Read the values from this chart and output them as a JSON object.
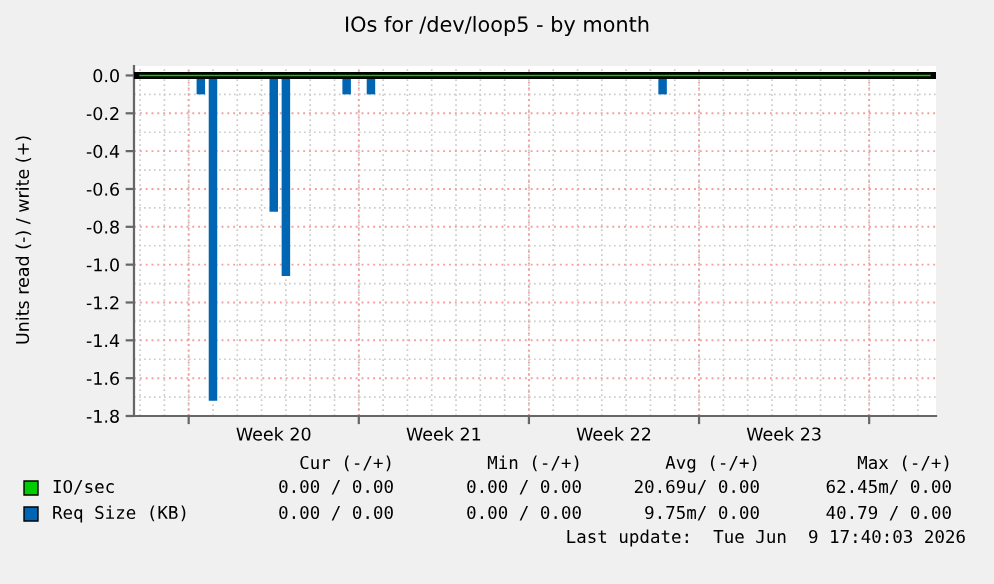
{
  "chart_data": {
    "type": "bar",
    "title": "IOs for /dev/loop5 - by month",
    "ylabel": "Units read (-) / write (+)",
    "categories": [
      null,
      null,
      null,
      null,
      null,
      null,
      null,
      null,
      null,
      null,
      null,
      "Week 20",
      null,
      null,
      null,
      null,
      null,
      null,
      null,
      null,
      null,
      null,
      null,
      null,
      null,
      "Week 21",
      null,
      null,
      null,
      null,
      null,
      null,
      null,
      null,
      null,
      null,
      null,
      null,
      null,
      "Week 22",
      null,
      null,
      null,
      null,
      null,
      null,
      null,
      null,
      null,
      null,
      null,
      null,
      null,
      "Week 23",
      null,
      null,
      null,
      null,
      null,
      null,
      null,
      null,
      null,
      null,
      null,
      null
    ],
    "ylim": [
      -1.8,
      0.05
    ],
    "yticks": [
      {
        "value": 0,
        "label": "0.0"
      },
      {
        "value": -0.2,
        "label": "-0.2"
      },
      {
        "value": -0.4,
        "label": "-0.4"
      },
      {
        "value": -0.6,
        "label": "-0.6"
      },
      {
        "value": -0.8,
        "label": "-0.8"
      },
      {
        "value": -1.0,
        "label": "-1.0"
      },
      {
        "value": -1.2,
        "label": "-1.2"
      },
      {
        "value": -1.4,
        "label": "-1.4"
      },
      {
        "value": -1.6,
        "label": "-1.6"
      },
      {
        "value": -1.8,
        "label": "-1.8"
      }
    ],
    "grid": true,
    "legend": "bottom left",
    "ref_lines": [
      {
        "axis": "y",
        "value": 0,
        "color": "#000000"
      }
    ],
    "series": [
      {
        "name": "IO/sec",
        "type": "line",
        "color": "#00cc00",
        "values": [
          0,
          0,
          0,
          0,
          0,
          0,
          0,
          0,
          0,
          0,
          0,
          0,
          0,
          0,
          0,
          0,
          0,
          0,
          0,
          0,
          0,
          0,
          0,
          0,
          0,
          0,
          0,
          0,
          0,
          0,
          0,
          0,
          0,
          0,
          0,
          0,
          0,
          0,
          0,
          0,
          0,
          0,
          0,
          0,
          0,
          0,
          0,
          0,
          0,
          0,
          0,
          0,
          0,
          0,
          0,
          0,
          0,
          0,
          0,
          0,
          0,
          0,
          0,
          0,
          0,
          0
        ]
      },
      {
        "name": "Req Size (KB)",
        "color": "#0066b3",
        "values": [
          0,
          0,
          0,
          0,
          0,
          -0.1,
          -1.72,
          0,
          0,
          0,
          0,
          -0.72,
          -1.06,
          0,
          0,
          0,
          0,
          -0.1,
          0,
          -0.1,
          0,
          0,
          0,
          0,
          0,
          0,
          0,
          0,
          0,
          0,
          0,
          0,
          0,
          0,
          0,
          0,
          0,
          0,
          0,
          0,
          0,
          0,
          0,
          -0.1,
          0,
          0,
          0,
          0,
          0,
          0,
          0,
          0,
          0,
          0,
          0,
          0,
          0,
          0,
          0,
          0,
          0,
          0,
          0,
          0,
          0,
          0
        ]
      }
    ],
    "annotations": [
      "Cur (-/+)",
      "Min (-/+)",
      "Avg (-/+)",
      "Max (-/+)",
      "0.00 / 0.00",
      "0.00 / 0.00",
      "20.69u/ 0.00",
      "62.45m/ 0.00",
      "0.00 / 0.00",
      "0.00 / 0.00",
      "9.75m/ 0.00",
      "40.79 / 0.00",
      "Last update:  Tue Jun  9 17:40:03 2026"
    ]
  }
}
